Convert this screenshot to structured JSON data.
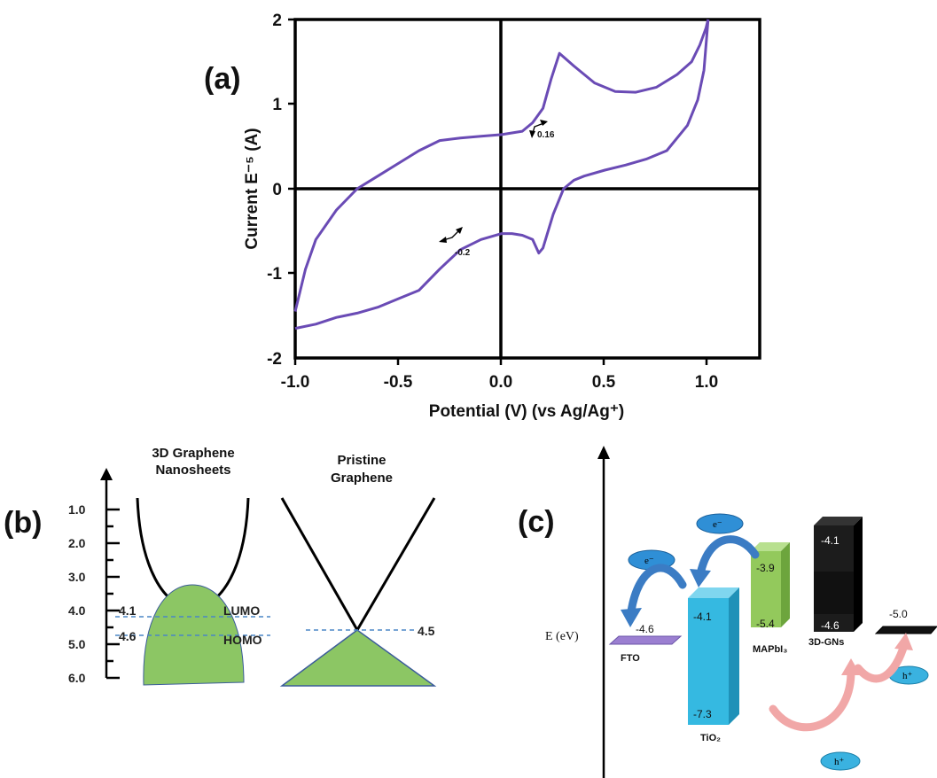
{
  "panel_a": {
    "label": "(a)",
    "xlabel": "Potential (V) (vs Ag/Ag⁺)",
    "ylabel": "Current E⁻⁵ (A)",
    "annotation_ox": "0.16",
    "annotation_red": "-0.2"
  },
  "panel_b": {
    "label": "(b)",
    "title_left_1": "3D Graphene",
    "title_left_2": "Nanosheets",
    "title_right_1": "Pristine",
    "title_right_2": "Graphene",
    "lumo_val": "4.1",
    "homo_val": "4.6",
    "lumo_label": "LUMO",
    "homo_label": "HOMO",
    "dirac_val": "4.5"
  },
  "panel_c": {
    "label": "(c)",
    "axis_label": "E (eV)",
    "fto": {
      "name": "FTO",
      "level": "-4.6"
    },
    "tio2": {
      "name": "TiO₂",
      "top": "-4.1",
      "bottom": "-7.3"
    },
    "mapbi3": {
      "name": "MAPbI₃",
      "top": "-3.9",
      "bottom": "-5.4"
    },
    "gns": {
      "name": "3D-GNs",
      "top": "-4.1",
      "bottom": "-4.6"
    },
    "au": {
      "level": "-5.0"
    },
    "electron": "e⁻",
    "hole": "h⁺"
  },
  "colors": {
    "cv_curve": "#6a4bb5",
    "band_fill": "#8cc664",
    "dashed": "#4a86c5",
    "tio2": "#35b9e1",
    "mapbi3": "#93c95c",
    "gns": "#111111",
    "fto": "#9b7fd1",
    "arrow_blue": "#3b7cc4",
    "arrow_pink": "#f1a7a7"
  },
  "chart_data": [
    {
      "type": "line",
      "title": "",
      "xlabel": "Potential (V) (vs Ag/Ag⁺)",
      "ylabel": "Current E⁻⁵ (A)",
      "xlim": [
        -1.0,
        1.25
      ],
      "ylim": [
        -2,
        2
      ],
      "xticks": [
        "-1.0",
        "-0.5",
        "0.0",
        "0.5",
        "1.0"
      ],
      "yticks": [
        "-2",
        "-1",
        "0",
        "1",
        "2"
      ],
      "series": [
        {
          "x": [
            -1.0,
            -0.95,
            -0.9,
            -0.8,
            -0.7,
            -0.6,
            -0.5,
            -0.4,
            -0.3,
            -0.2,
            -0.1,
            0.0,
            0.1,
            0.15,
            0.2,
            0.24,
            0.28,
            0.35,
            0.45,
            0.55,
            0.65,
            0.75,
            0.85,
            0.92,
            0.96,
            0.99,
            1.0
          ],
          "y": [
            -1.45,
            -0.95,
            -0.6,
            -0.25,
            0.0,
            0.15,
            0.3,
            0.45,
            0.57,
            0.6,
            0.62,
            0.64,
            0.68,
            0.78,
            0.95,
            1.3,
            1.6,
            1.45,
            1.25,
            1.15,
            1.14,
            1.2,
            1.35,
            1.5,
            1.7,
            1.9,
            2.0
          ]
        },
        {
          "x": [
            1.0,
            0.98,
            0.95,
            0.9,
            0.8,
            0.7,
            0.6,
            0.5,
            0.4,
            0.35,
            0.3,
            0.25,
            0.2,
            0.18,
            0.15,
            0.1,
            0.05,
            0.0,
            -0.1,
            -0.2,
            -0.3,
            -0.4,
            -0.5,
            -0.6,
            -0.7,
            -0.8,
            -0.9,
            -1.0
          ],
          "y": [
            2.0,
            1.4,
            1.05,
            0.75,
            0.45,
            0.35,
            0.28,
            0.22,
            0.15,
            0.1,
            0.0,
            -0.3,
            -0.7,
            -0.76,
            -0.6,
            -0.55,
            -0.53,
            -0.53,
            -0.6,
            -0.72,
            -0.95,
            -1.2,
            -1.3,
            -1.4,
            -1.47,
            -1.52,
            -1.6,
            -1.65
          ]
        }
      ]
    }
  ]
}
